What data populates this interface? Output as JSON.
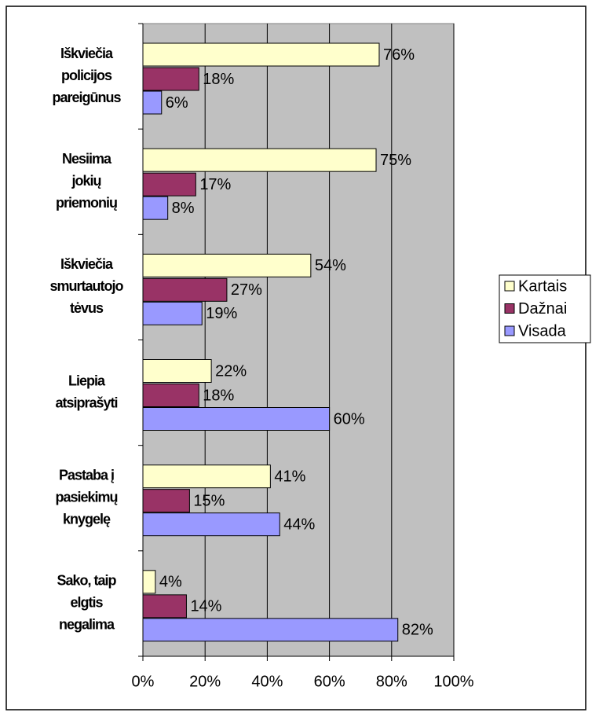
{
  "chart_data": {
    "type": "bar",
    "orientation": "horizontal",
    "categories": [
      [
        "Iškviečia",
        "policijos",
        "pareigūnus"
      ],
      [
        "Nesiima",
        "jokių",
        "priemonių"
      ],
      [
        "Iškviečia",
        "smurtautojo",
        "tėvus"
      ],
      [
        "Liepia",
        "atsiprašyti"
      ],
      [
        "Pastaba į",
        "pasiekimų",
        "knygelę"
      ],
      [
        "Sako, taip",
        "elgtis",
        "negalima"
      ]
    ],
    "series": [
      {
        "name": "Kartais",
        "color": "#ffffcc",
        "values": [
          76,
          75,
          54,
          22,
          41,
          4
        ],
        "value_labels": [
          "76%",
          "75%",
          "54%",
          "22%",
          "41%",
          "4%"
        ]
      },
      {
        "name": "Dažnai",
        "color": "#993366",
        "values": [
          18,
          17,
          27,
          18,
          15,
          14
        ],
        "value_labels": [
          "18%",
          "17%",
          "27%",
          "18%",
          "15%",
          "14%"
        ]
      },
      {
        "name": "Visada",
        "color": "#9999ff",
        "values": [
          6,
          8,
          19,
          60,
          44,
          82
        ],
        "value_labels": [
          "6%",
          "8%",
          "19%",
          "60%",
          "44%",
          "82%"
        ]
      }
    ],
    "xlim": [
      0,
      100
    ],
    "xticks": [
      {
        "value": 0,
        "label": "0%"
      },
      {
        "value": 20,
        "label": "20%"
      },
      {
        "value": 40,
        "label": "40%"
      },
      {
        "value": 60,
        "label": "60%"
      },
      {
        "value": 80,
        "label": "80%"
      },
      {
        "value": 100,
        "label": "100%"
      }
    ],
    "grid": true,
    "plot_background": "#c0c0c0",
    "legend": "right"
  }
}
